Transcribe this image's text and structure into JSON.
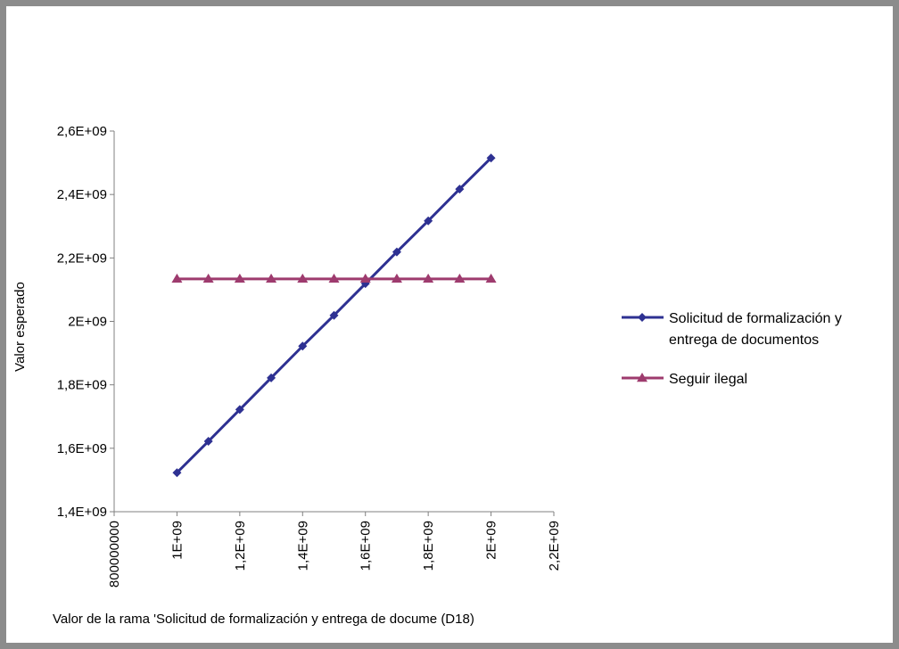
{
  "chart_data": {
    "type": "line",
    "title": "",
    "xlabel": "Valor de la rama 'Solicitud de formalización y entrega de docume (D18)",
    "ylabel": "Valor esperado",
    "xlim": [
      800000000,
      2200000000
    ],
    "ylim": [
      1400000000,
      2600000000
    ],
    "x_ticks": [
      {
        "value": 800000000,
        "label": "800000000"
      },
      {
        "value": 1000000000,
        "label": "1E+09"
      },
      {
        "value": 1200000000,
        "label": "1,2E+09"
      },
      {
        "value": 1400000000,
        "label": "1,4E+09"
      },
      {
        "value": 1600000000,
        "label": "1,6E+09"
      },
      {
        "value": 1800000000,
        "label": "1,8E+09"
      },
      {
        "value": 2000000000,
        "label": "2E+09"
      },
      {
        "value": 2200000000,
        "label": "2,2E+09"
      }
    ],
    "y_ticks": [
      {
        "value": 1400000000,
        "label": "1,4E+09"
      },
      {
        "value": 1600000000,
        "label": "1,6E+09"
      },
      {
        "value": 1800000000,
        "label": "1,8E+09"
      },
      {
        "value": 2000000000,
        "label": "2E+09"
      },
      {
        "value": 2200000000,
        "label": "2,2E+09"
      },
      {
        "value": 2400000000,
        "label": "2,4E+09"
      },
      {
        "value": 2600000000,
        "label": "2,6E+09"
      }
    ],
    "x": [
      1000000000,
      1100000000,
      1200000000,
      1300000000,
      1400000000,
      1500000000,
      1600000000,
      1700000000,
      1800000000,
      1900000000,
      2000000000
    ],
    "series": [
      {
        "name": "Solicitud de formalización y entrega de documentos",
        "name_lines": [
          "Solicitud de formalización y",
          "entrega de documentos"
        ],
        "marker": "diamond",
        "color": "#2e3192",
        "values": [
          1523000000,
          1622000000,
          1722000000,
          1822000000,
          1922000000,
          2019000000,
          2119000000,
          2219000000,
          2317000000,
          2417000000,
          2515000000
        ]
      },
      {
        "name": "Seguir ilegal",
        "name_lines": [
          "Seguir ilegal"
        ],
        "marker": "triangle",
        "color": "#9e3b6e",
        "values": [
          2134000000,
          2134000000,
          2134000000,
          2134000000,
          2134000000,
          2134000000,
          2134000000,
          2134000000,
          2134000000,
          2134000000,
          2134000000
        ]
      }
    ],
    "grid": false,
    "legend_position": "right"
  }
}
